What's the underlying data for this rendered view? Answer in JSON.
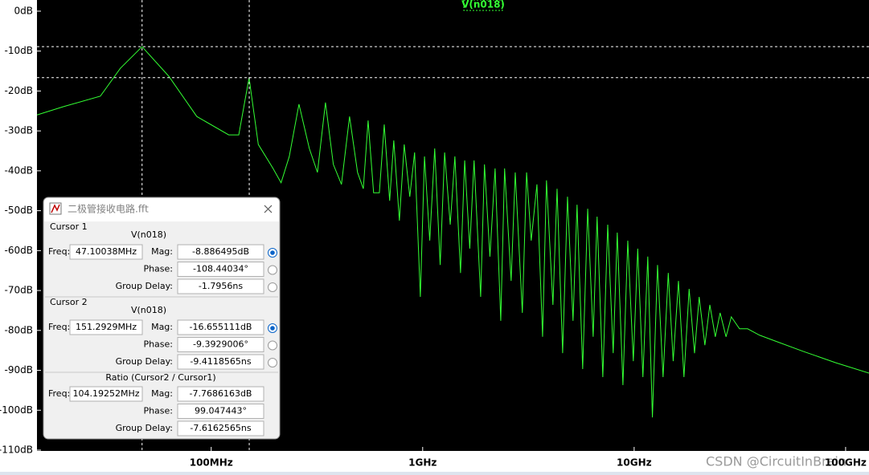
{
  "chart_data": {
    "type": "line",
    "log_x": true,
    "x": [
      15000000.0,
      20100000.0,
      29900000.0,
      37200000.0,
      47100000.0,
      63000000.0,
      85500000.0,
      121000000.0,
      135000000.0,
      151000000.0,
      167000000.0,
      196000000.0,
      214000000.0,
      234000000.0,
      260000000.0,
      291000000.0,
      318000000.0,
      347000000.0,
      378000000.0,
      413000000.0,
      451000000.0,
      492000000.0,
      524000000.0,
      552000000.0,
      586000000.0,
      624000000.0,
      658000000.0,
      698000000.0,
      730000000.0,
      776000000.0,
      818000000.0,
      869000000.0,
      916000000.0,
      975000000.0,
      1020000000.0,
      1080000000.0,
      1140000000.0,
      1210000000.0,
      1270000000.0,
      1350000000.0,
      1420000000.0,
      1510000000.0,
      1580000000.0,
      1670000000.0,
      1750000000.0,
      1880000000.0,
      1960000000.0,
      2080000000.0,
      2200000000.0,
      2340000000.0,
      2440000000.0,
      2620000000.0,
      2740000000.0,
      2960000000.0,
      3100000000.0,
      3260000000.0,
      3470000000.0,
      3690000000.0,
      3850000000.0,
      4130000000.0,
      4320000000.0,
      4590000000.0,
      4840000000.0,
      5140000000.0,
      5370000000.0,
      5710000000.0,
      6030000000.0,
      6400000000.0,
      6680000000.0,
      7110000000.0,
      7500000000.0,
      7960000000.0,
      8320000000.0,
      8850000000.0,
      9330000000.0,
      9910000000.0,
      10400000000.0,
      11000000000.0,
      11600000000.0,
      12200000000.0,
      12900000000.0,
      13700000000.0,
      14500000000.0,
      15300000000.0,
      16200000000.0,
      17200000000.0,
      18200000000.0,
      19300000000.0,
      20300000000.0,
      21600000000.0,
      22800000000.0,
      24200000000.0,
      25500000000.0,
      27200000000.0,
      28800000000.0,
      31500000000.0,
      34400000000.0,
      39200000000.0,
      46700000000.0,
      63400000000.0,
      89900000000.0,
      129000000000.0
    ],
    "series": [
      {
        "name": "V(n018)",
        "color": "#33ff33",
        "values": [
          -26.0,
          -23.9,
          -21.3,
          -14.3,
          -8.9,
          -16.3,
          -26.4,
          -31.0,
          -31.0,
          -16.7,
          -33.4,
          -39.4,
          -43.0,
          -36.4,
          -23.3,
          -34.4,
          -40.4,
          -22.9,
          -38.4,
          -43.4,
          -26.4,
          -40.4,
          -44.5,
          -27.4,
          -45.5,
          -45.5,
          -28.4,
          -47.5,
          -32.4,
          -52.5,
          -33.4,
          -46.5,
          -35.4,
          -71.6,
          -36.4,
          -57.5,
          -34.4,
          -63.6,
          -35.4,
          -53.5,
          -36.4,
          -65.6,
          -37.4,
          -59.5,
          -37.4,
          -71.6,
          -38.4,
          -61.5,
          -39.4,
          -77.6,
          -39.4,
          -67.6,
          -40.4,
          -75.6,
          -40.4,
          -57.5,
          -43.4,
          -81.6,
          -42.4,
          -73.6,
          -44.5,
          -85.7,
          -46.5,
          -77.6,
          -48.5,
          -89.7,
          -49.5,
          -81.6,
          -51.5,
          -91.7,
          -53.5,
          -85.7,
          -55.5,
          -93.7,
          -57.5,
          -87.7,
          -59.5,
          -91.7,
          -61.5,
          -101.8,
          -63.6,
          -91.7,
          -65.6,
          -87.7,
          -67.6,
          -91.7,
          -69.6,
          -85.7,
          -71.6,
          -83.7,
          -73.6,
          -81.6,
          -75.6,
          -81.6,
          -76.6,
          -79.6,
          -79.6,
          -81.2,
          -82.7,
          -85.3,
          -88.1,
          -90.7
        ]
      }
    ],
    "xlim": [
      15000000.0,
      129000000000.0
    ],
    "xticks": [
      {
        "value": 100000000.0,
        "label": "100MHz"
      },
      {
        "value": 1000000000.0,
        "label": "1GHz"
      },
      {
        "value": 10000000000.0,
        "label": "10GHz"
      },
      {
        "value": 100000000000.0,
        "label": "100GHz"
      }
    ],
    "ylim": [
      -110.2,
      2.8
    ],
    "yticks": [
      {
        "value": 0,
        "label": "0dB"
      },
      {
        "value": -10,
        "label": "-10dB"
      },
      {
        "value": -20,
        "label": "-20dB"
      },
      {
        "value": -30,
        "label": "-30dB"
      },
      {
        "value": -40,
        "label": "-40dB"
      },
      {
        "value": -50,
        "label": "-50dB"
      },
      {
        "value": -60,
        "label": "-60dB"
      },
      {
        "value": -70,
        "label": "-70dB"
      },
      {
        "value": -80,
        "label": "-80dB"
      },
      {
        "value": -90,
        "label": "-90dB"
      },
      {
        "value": -100,
        "label": "-100dB"
      },
      {
        "value": -110,
        "label": "-110dB"
      }
    ],
    "cursors": [
      {
        "x": 47100380,
        "y": -8.886495
      },
      {
        "x": 151292900,
        "y": -16.655111
      }
    ]
  },
  "dialog": {
    "title": "二极管接收电路.fft",
    "sections": [
      {
        "label": "Cursor 1",
        "trace": "V(n018)",
        "freq_label": "Freq:",
        "freq": "47.10038MHz",
        "rows": [
          {
            "label": "Mag:",
            "value": "-8.886495dB"
          },
          {
            "label": "Phase:",
            "value": "-108.44034°"
          },
          {
            "label": "Group Delay:",
            "value": "-1.7956ns"
          }
        ]
      },
      {
        "label": "Cursor 2",
        "trace": "V(n018)",
        "freq_label": "Freq:",
        "freq": "151.2929MHz",
        "rows": [
          {
            "label": "Mag:",
            "value": "-16.655111dB"
          },
          {
            "label": "Phase:",
            "value": "-9.3929006°"
          },
          {
            "label": "Group Delay:",
            "value": "-9.4118565ns"
          }
        ]
      },
      {
        "label": "Ratio (Cursor2 / Cursor1)",
        "freq_label": "Freq:",
        "freq": "104.19252MHz",
        "rows": [
          {
            "label": "Mag:",
            "value": "-7.7686163dB"
          },
          {
            "label": "Phase:",
            "value": "99.047443°"
          },
          {
            "label": "Group Delay:",
            "value": "-7.6162565ns"
          }
        ]
      }
    ]
  },
  "watermark": "CSDN @CircuitInBrain"
}
